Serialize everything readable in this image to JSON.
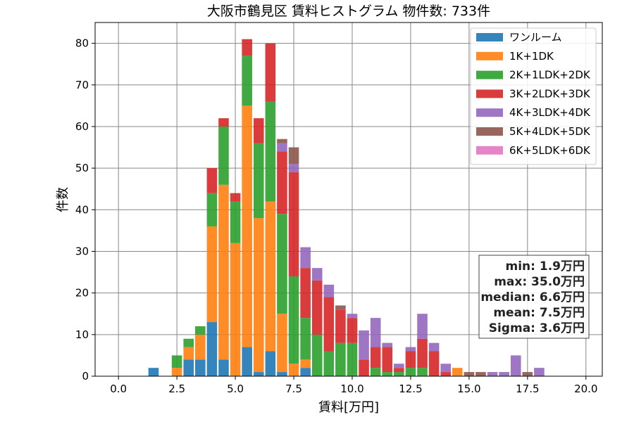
{
  "chart_data": {
    "type": "bar",
    "stacked": true,
    "title": "大阪市鶴見区 賃料ヒストグラム 物件数: 733件",
    "xlabel": "賃料[万円]",
    "ylabel": "件数",
    "xlim": [
      -1.0,
      20.7
    ],
    "ylim": [
      0,
      85
    ],
    "xticks": [
      0.0,
      2.5,
      5.0,
      7.5,
      10.0,
      12.5,
      15.0,
      17.5,
      20.0
    ],
    "xtick_labels": [
      "0.0",
      "2.5",
      "5.0",
      "7.5",
      "10.0",
      "12.5",
      "15.0",
      "17.5",
      "20.0"
    ],
    "yticks": [
      0,
      10,
      20,
      30,
      40,
      50,
      60,
      70,
      80
    ],
    "ytick_labels": [
      "0",
      "10",
      "20",
      "30",
      "40",
      "50",
      "60",
      "70",
      "80"
    ],
    "grid": true,
    "legend_position": "top-right",
    "bin_width": 0.5,
    "x": [
      1.5,
      2.5,
      3.0,
      3.5,
      4.0,
      4.5,
      5.0,
      5.5,
      6.0,
      6.5,
      7.0,
      7.5,
      8.0,
      8.5,
      9.0,
      9.5,
      10.0,
      10.5,
      11.0,
      11.5,
      12.0,
      12.5,
      13.0,
      13.5,
      14.0,
      14.5,
      15.0,
      15.5,
      16.0,
      16.5,
      17.0,
      17.5,
      18.0
    ],
    "series": [
      {
        "name": "ワンルーム",
        "color": "#1f77b4",
        "values": [
          2,
          0,
          4,
          4,
          13,
          4,
          0,
          7,
          1,
          6,
          1,
          0,
          2,
          0,
          0,
          0,
          0,
          0,
          0,
          0,
          0,
          0,
          0,
          0,
          0,
          0,
          0,
          0,
          0,
          0,
          0,
          0,
          0
        ]
      },
      {
        "name": "1K+1DK",
        "color": "#ff7f0e",
        "values": [
          0,
          2,
          3,
          6,
          23,
          42,
          32,
          58,
          37,
          36,
          14,
          3,
          2,
          0,
          0,
          0,
          0,
          0,
          0,
          0,
          0,
          0,
          0,
          0,
          0,
          2,
          0,
          0,
          0,
          0,
          0,
          0,
          0
        ]
      },
      {
        "name": "2K+1LDK+2DK",
        "color": "#2ca02c",
        "values": [
          0,
          3,
          2,
          2,
          8,
          14,
          10,
          12,
          18,
          24,
          24,
          21,
          10,
          10,
          6,
          8,
          8,
          0,
          2,
          1,
          1,
          2,
          2,
          0,
          0,
          0,
          0,
          0,
          0,
          0,
          0,
          0,
          0
        ]
      },
      {
        "name": "3K+2LDK+3DK",
        "color": "#d62728",
        "values": [
          0,
          0,
          0,
          0,
          6,
          2,
          2,
          4,
          6,
          14,
          15,
          25,
          12,
          13,
          13,
          8,
          6,
          4,
          5,
          6,
          1,
          4,
          7,
          6,
          1,
          0,
          0,
          0,
          0,
          0,
          0,
          0,
          0
        ]
      },
      {
        "name": "4K+3LDK+4DK",
        "color": "#9467bd",
        "values": [
          0,
          0,
          0,
          0,
          0,
          0,
          0,
          0,
          0,
          0,
          2,
          2,
          5,
          3,
          3,
          0,
          1,
          7,
          7,
          1,
          1,
          1,
          6,
          2,
          2,
          0,
          0,
          0,
          1,
          1,
          5,
          0,
          2
        ]
      },
      {
        "name": "5K+4LDK+5DK",
        "color": "#8c564b",
        "values": [
          0,
          0,
          0,
          0,
          0,
          0,
          0,
          0,
          0,
          0,
          1,
          4,
          0,
          0,
          0,
          1,
          0,
          0,
          0,
          0,
          0,
          0,
          0,
          0,
          0,
          0,
          1,
          1,
          0,
          0,
          0,
          1,
          0
        ]
      },
      {
        "name": "6K+5LDK+6DK",
        "color": "#e377c2",
        "values": [
          0,
          0,
          0,
          0,
          0,
          0,
          0,
          0,
          0,
          0,
          0,
          0,
          0,
          0,
          0,
          0,
          0,
          0,
          0,
          0,
          0,
          0,
          0,
          0,
          0,
          0,
          0,
          0,
          0,
          0,
          0,
          0,
          0
        ]
      }
    ],
    "stats": {
      "min": "min: 1.9万円",
      "max": "max: 35.0万円",
      "median": "median: 6.6万円",
      "mean": "mean: 7.5万円",
      "sigma": "Sigma: 3.6万円"
    }
  }
}
